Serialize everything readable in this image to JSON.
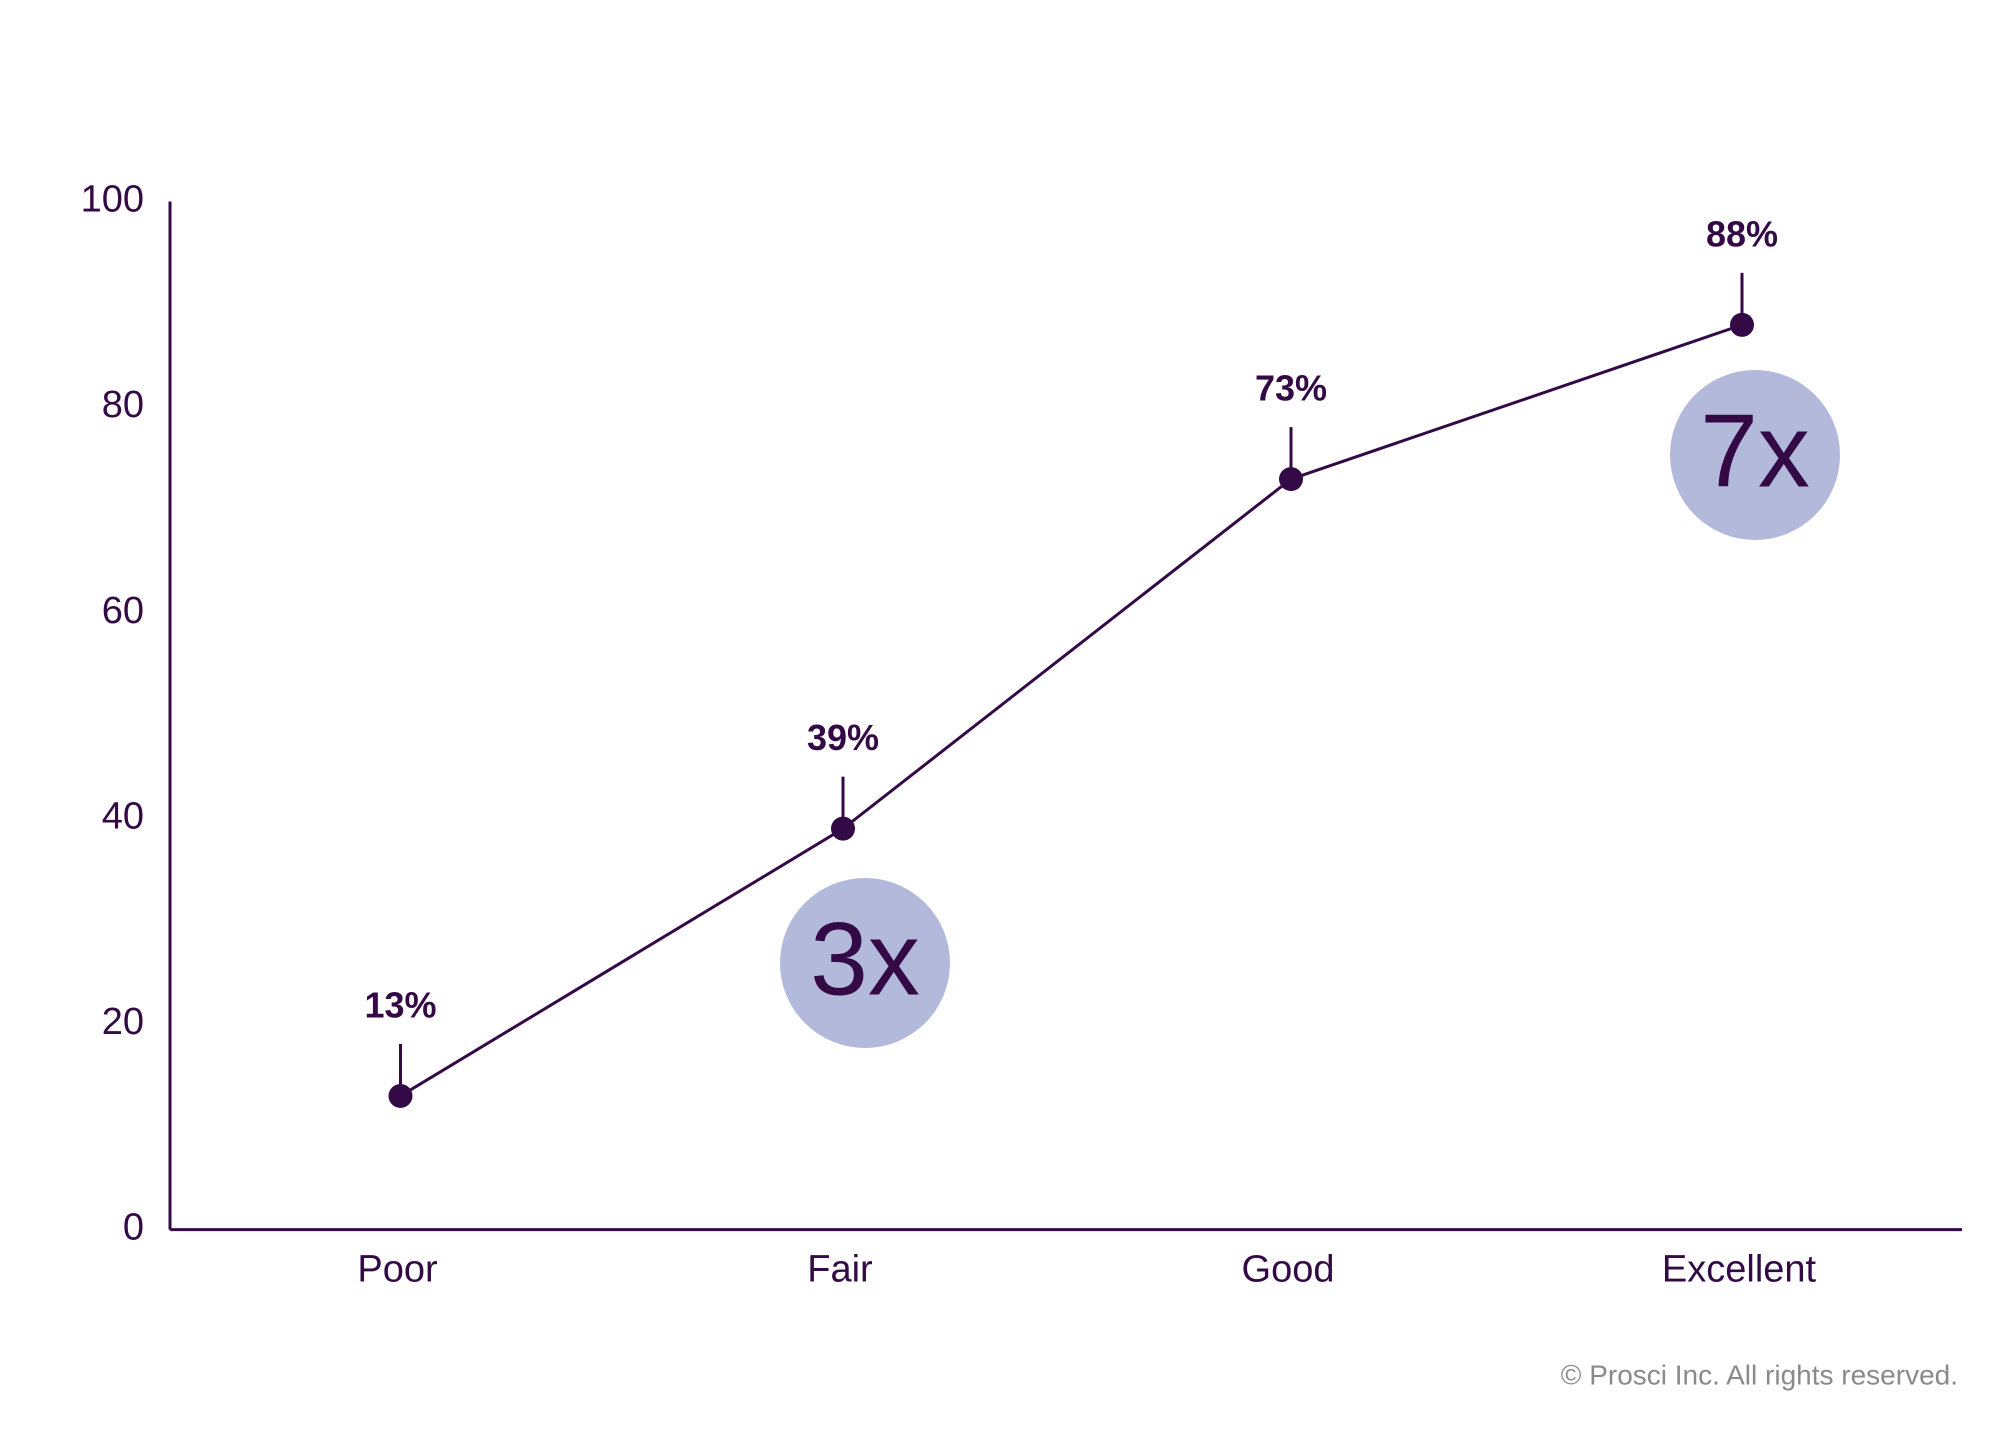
{
  "chart_data": {
    "type": "line",
    "categories": [
      "Poor",
      "Fair",
      "Good",
      "Excellent"
    ],
    "values": [
      13,
      39,
      73,
      88
    ],
    "value_labels": [
      "13%",
      "39%",
      "73%",
      "88%"
    ],
    "color": "#330a45",
    "ylim": [
      0,
      100
    ],
    "yticks": [
      0,
      20,
      40,
      60,
      80,
      100
    ],
    "grid": false,
    "annotations": [
      "3x",
      "7x"
    ],
    "annotation_color": "#b3b9da",
    "caption": "© Prosci Inc. All rights reserved."
  }
}
